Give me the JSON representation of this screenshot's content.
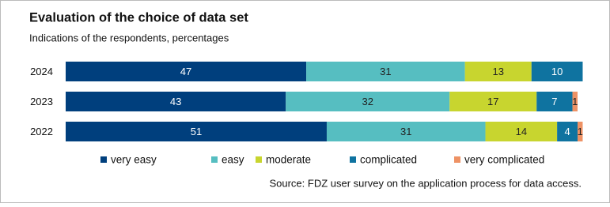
{
  "chart_data": {
    "type": "stacked-bar-horizontal",
    "title": "Evaluation of the choice of data set",
    "subtitle": "Indications of the respondents, percentages",
    "source": "Source: FDZ user survey on the application process for data access.",
    "categories": [
      "2024",
      "2023",
      "2022"
    ],
    "series": [
      {
        "name": "very easy",
        "color": "#003f7d",
        "values": [
          47,
          43,
          51
        ]
      },
      {
        "name": "easy",
        "color": "#56bec1",
        "values": [
          31,
          32,
          31
        ]
      },
      {
        "name": "moderate",
        "color": "#c8d52f",
        "values": [
          13,
          17,
          14
        ]
      },
      {
        "name": "complicated",
        "color": "#0f73a0",
        "values": [
          10,
          7,
          4
        ]
      },
      {
        "name": "very complicated",
        "color": "#ee9265",
        "values": [
          null,
          1,
          1
        ]
      }
    ],
    "xlim": [
      0,
      100
    ]
  }
}
